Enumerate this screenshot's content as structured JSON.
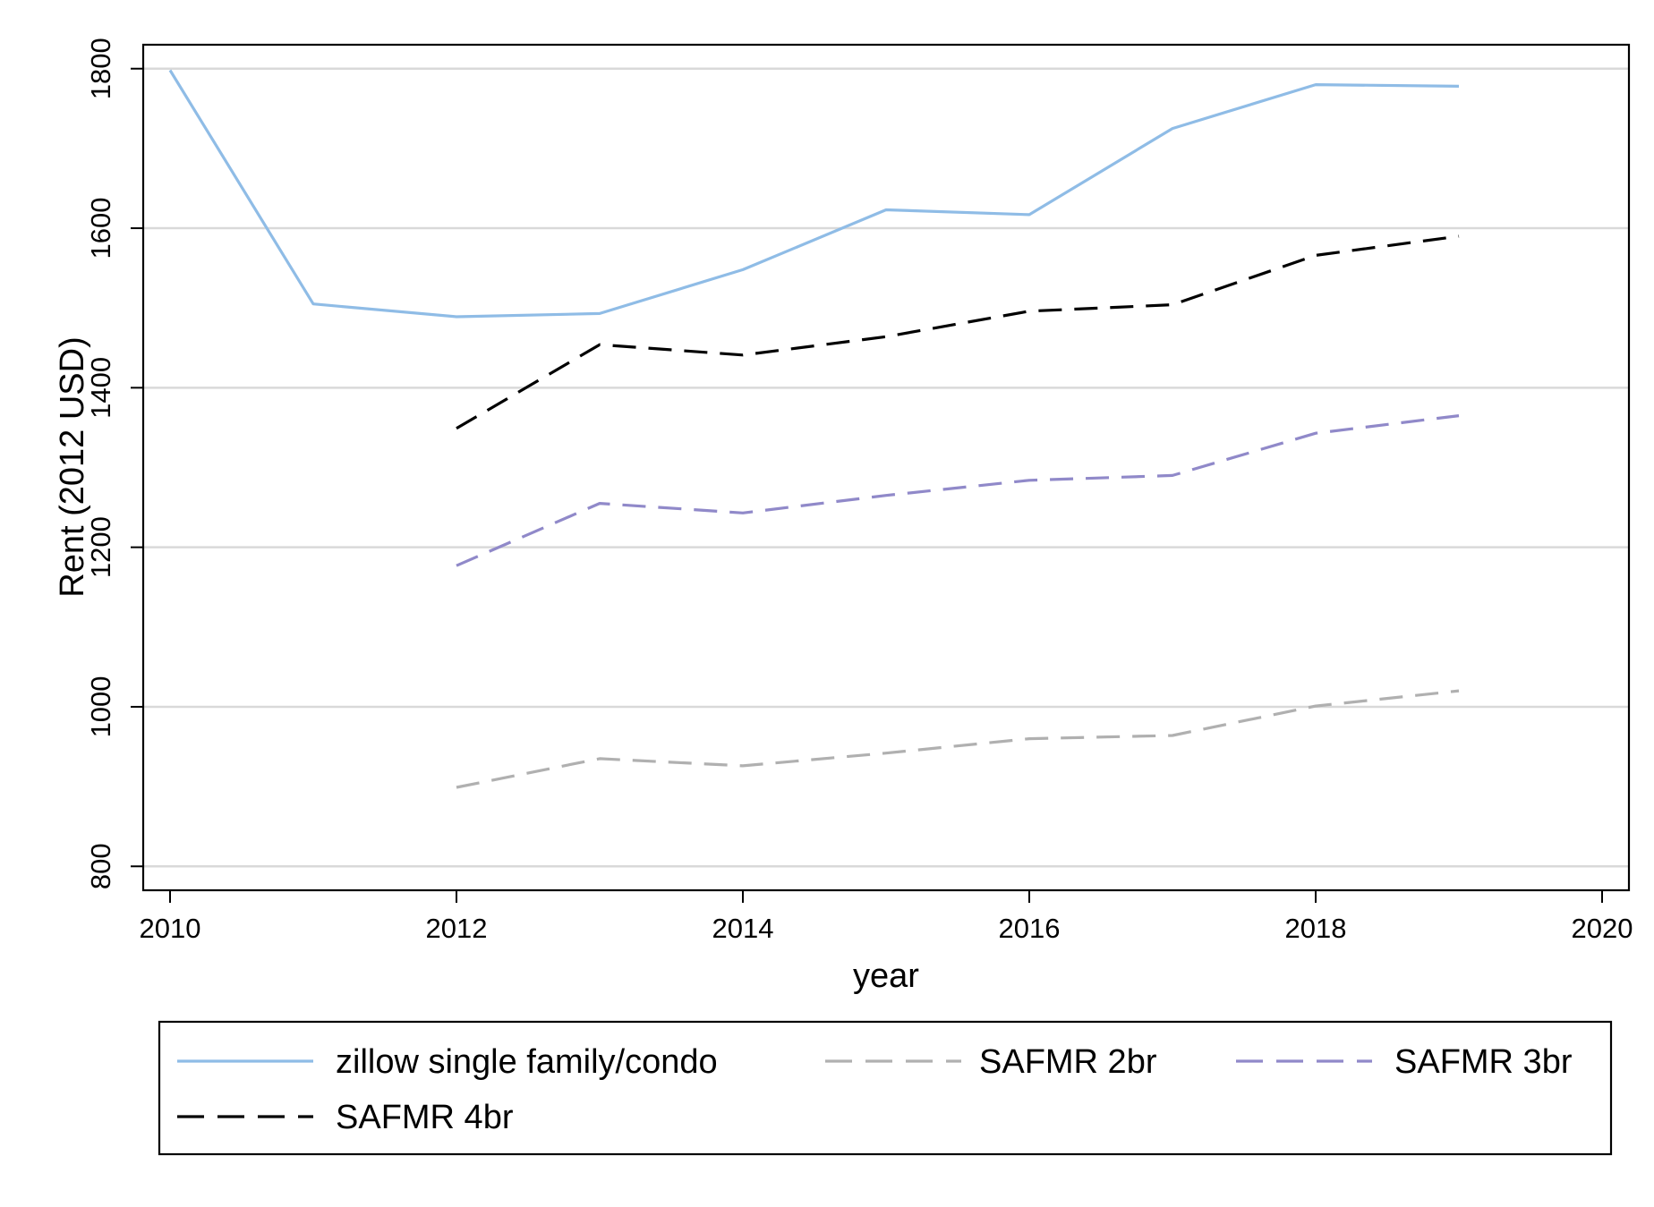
{
  "chart_data": {
    "type": "line",
    "title": "",
    "xlabel": "year",
    "ylabel": "Rent (2012 USD)",
    "xlim": [
      2010,
      2020
    ],
    "ylim": [
      770,
      1830
    ],
    "x_ticks": [
      "2010",
      "2012",
      "2014",
      "2016",
      "2018",
      "2020"
    ],
    "y_ticks": [
      "800",
      "1000",
      "1200",
      "1400",
      "1600",
      "1800"
    ],
    "grid": "horizontal",
    "legend_position": "bottom",
    "series": [
      {
        "name": "zillow single family/condo",
        "color": "#8fbce6",
        "dash": "solid",
        "x": [
          2010,
          2011,
          2012,
          2013,
          2014,
          2015,
          2016,
          2017,
          2018,
          2019
        ],
        "y": [
          1798,
          1505,
          1489,
          1493,
          1548,
          1623,
          1617,
          1725,
          1780,
          1778
        ]
      },
      {
        "name": "SAFMR 2br",
        "color": "#b0b0b0",
        "dash": "dashed",
        "x": [
          2012,
          2013,
          2014,
          2015,
          2016,
          2017,
          2018,
          2019
        ],
        "y": [
          899,
          935,
          926,
          942,
          960,
          964,
          1001,
          1020
        ]
      },
      {
        "name": "SAFMR 3br",
        "color": "#9089c9",
        "dash": "dashed",
        "x": [
          2012,
          2013,
          2014,
          2015,
          2016,
          2017,
          2018,
          2019
        ],
        "y": [
          1177,
          1255,
          1243,
          1265,
          1284,
          1290,
          1343,
          1365
        ]
      },
      {
        "name": "SAFMR 4br",
        "color": "#000000",
        "dash": "dashed",
        "x": [
          2012,
          2013,
          2014,
          2015,
          2016,
          2017,
          2018,
          2019
        ],
        "y": [
          1349,
          1454,
          1441,
          1464,
          1496,
          1504,
          1566,
          1590
        ]
      }
    ]
  }
}
